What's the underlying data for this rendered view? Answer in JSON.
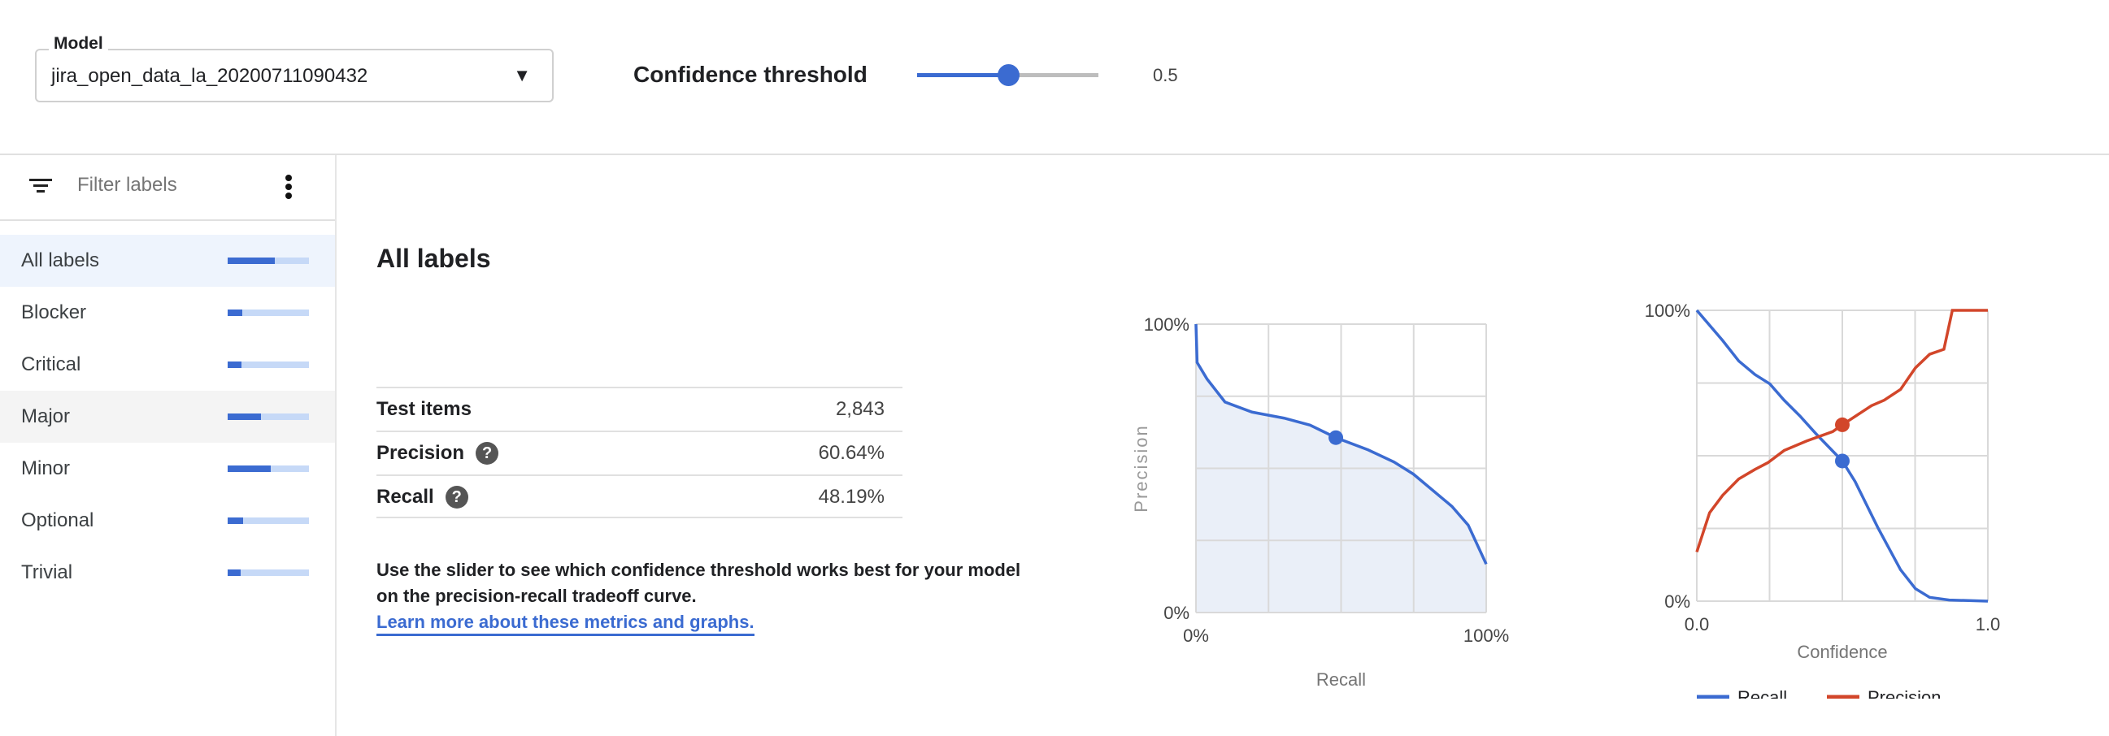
{
  "header": {
    "model_label": "Model",
    "model_value": "jira_open_data_la_20200711090432",
    "confidence_label": "Confidence threshold",
    "confidence_value": "0.5",
    "confidence_fraction": 0.5,
    "accent": "#3b6bd1"
  },
  "sidebar": {
    "filter_placeholder": "Filter labels",
    "items": [
      {
        "label": "All labels",
        "fraction": 0.58,
        "selected": true
      },
      {
        "label": "Blocker",
        "fraction": 0.18
      },
      {
        "label": "Critical",
        "fraction": 0.17
      },
      {
        "label": "Major",
        "fraction": 0.41,
        "hovered": true
      },
      {
        "label": "Minor",
        "fraction": 0.53
      },
      {
        "label": "Optional",
        "fraction": 0.19
      },
      {
        "label": "Trivial",
        "fraction": 0.16
      }
    ]
  },
  "main": {
    "title": "All labels",
    "metrics": [
      {
        "label": "Test items",
        "value": "2,843"
      },
      {
        "label": "Precision",
        "value": "60.64%",
        "help": true
      },
      {
        "label": "Recall",
        "value": "48.19%",
        "help": true
      }
    ],
    "description": "Use the slider to see which confidence threshold works best for your model on the precision-recall tradeoff curve.",
    "link": "Learn more about these metrics and graphs."
  },
  "chart_data": [
    {
      "type": "area",
      "xlabel": "Recall",
      "ylabel": "Precision",
      "xticks": [
        "0%",
        "100%"
      ],
      "yticks": [
        "0%",
        "100%"
      ],
      "xlim": [
        0,
        100
      ],
      "ylim": [
        0,
        100
      ],
      "grid": true,
      "color": "#3b6bd1",
      "x": [
        0,
        0.4,
        3.8,
        10,
        19.3,
        30.4,
        39.3,
        48.19,
        59.3,
        68.2,
        74.9,
        88.2,
        93.8,
        100
      ],
      "y": [
        100,
        86.7,
        81,
        73,
        69.5,
        67.4,
        65,
        60.64,
        56.4,
        52.2,
        48,
        36.8,
        30.3,
        16.8
      ],
      "marker": {
        "x": 48.19,
        "y": 60.64
      }
    },
    {
      "type": "line",
      "xlabel": "Confidence",
      "xticks": [
        "0.0",
        "1.0"
      ],
      "yticks": [
        "0%",
        "100%"
      ],
      "xlim": [
        0,
        1
      ],
      "ylim": [
        0,
        100
      ],
      "grid": true,
      "legend": "bottom",
      "series": [
        {
          "name": "Recall",
          "color": "#3b6bd1",
          "x": [
            0,
            0.089,
            0.144,
            0.2,
            0.251,
            0.3,
            0.356,
            0.411,
            0.5,
            0.544,
            0.622,
            0.7,
            0.751,
            0.8,
            0.867,
            1
          ],
          "y": [
            100,
            89.6,
            82.6,
            77.9,
            74.7,
            69.1,
            63.5,
            57.4,
            48.19,
            41.1,
            25.3,
            10.8,
            4.3,
            1.3,
            0.4,
            0
          ],
          "marker": {
            "x": 0.5,
            "y": 48.19
          }
        },
        {
          "name": "Precision",
          "color": "#d2462a",
          "x": [
            0,
            0.044,
            0.089,
            0.144,
            0.2,
            0.244,
            0.3,
            0.378,
            0.467,
            0.5,
            0.6,
            0.644,
            0.7,
            0.751,
            0.8,
            0.849,
            0.878,
            1
          ],
          "y": [
            16.9,
            30.4,
            36.4,
            42,
            45.3,
            47.6,
            51.8,
            55.1,
            58.3,
            60.64,
            67.2,
            69.1,
            72.8,
            80.2,
            84.9,
            86.6,
            100,
            100
          ],
          "marker": {
            "x": 0.5,
            "y": 60.64
          }
        }
      ]
    }
  ]
}
